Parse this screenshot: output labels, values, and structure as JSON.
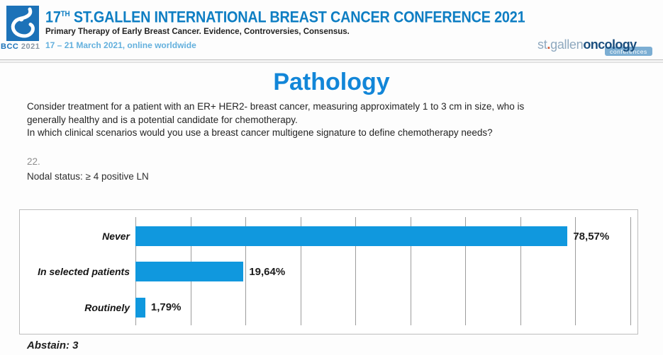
{
  "header": {
    "title_num": "17",
    "title_sup": "TH",
    "title_rest": " ST.GALLEN INTERNATIONAL BREAST CANCER CONFERENCE 2021",
    "subtitle": "Primary Therapy of Early Breast Cancer. Evidence, Controversies, Consensus.",
    "dates": "17 – 21 March 2021, online worldwide",
    "logo_caption_bcc": "BCC",
    "logo_caption_year": "2021",
    "brand_part1": "st",
    "brand_dot": ".",
    "brand_part2": "gallen",
    "brand_part3": "oncology",
    "brand_badge": "conferences"
  },
  "main": {
    "page_title": "Pathology",
    "question": {
      "lines": [
        "Consider treatment for a patient with an ER+ HER2- breast cancer, measuring approximately 1 to 3 cm in size, who is",
        "generally healthy and is a potential candidate for chemotherapy.",
        "In which clinical scenarios would you use a breast cancer multigene signature to define chemotherapy needs?"
      ]
    },
    "question_number": "22.",
    "question_label": "Nodal status: ≥ 4 positive LN",
    "abstain": "Abstain: 3"
  },
  "chart_data": {
    "type": "bar",
    "orientation": "horizontal",
    "categories": [
      "Never",
      "In selected patients",
      "Routinely"
    ],
    "values": [
      78.57,
      19.64,
      1.79
    ],
    "value_labels": [
      "78,57%",
      "19,64%",
      "1,79%"
    ],
    "xlim": [
      0,
      90
    ],
    "gridline_step": 10,
    "grid": true,
    "legend": "none",
    "bar_color": "#1098DE"
  },
  "colors": {
    "header_blue": "#0E7EC3",
    "page_title_blue": "#1286D8",
    "dates_blue": "#63B0DD",
    "bar_blue": "#1098DE",
    "brand_light_blue": "#8FA9BF",
    "brand_dark_blue": "#1A4E7E",
    "brand_dot_orange": "#D2522B",
    "badge_blue": "#6FA6CF",
    "logo_blue": "#1C72B8",
    "logo_caption_gray": "#8A97A5"
  }
}
